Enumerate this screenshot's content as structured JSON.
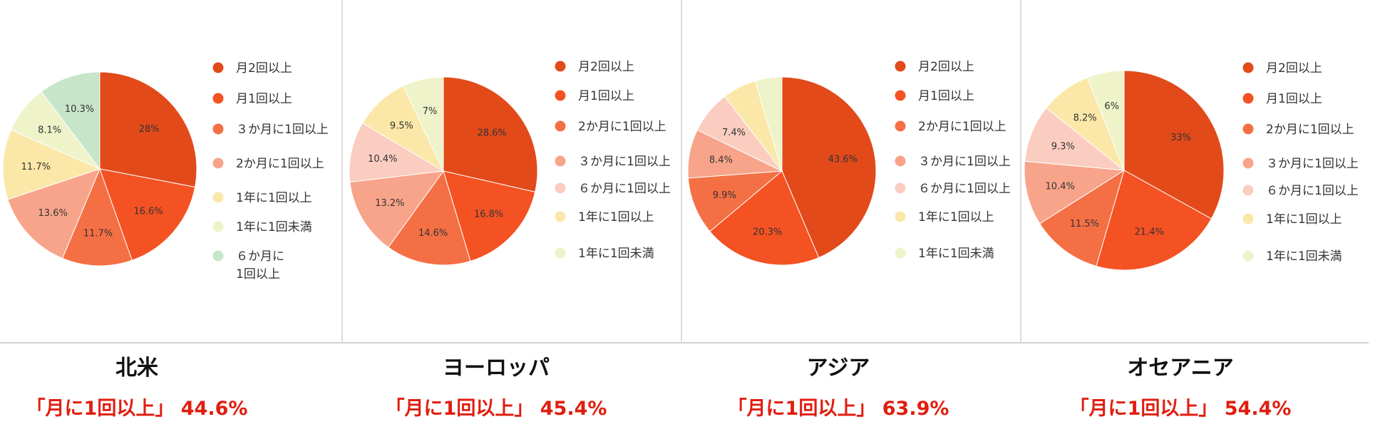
{
  "chart_data": [
    {
      "type": "pie",
      "title": "北米",
      "summary": "「月に1回以上」 44.6%",
      "slices": [
        {
          "label": "月2回以上",
          "value": 28,
          "text": "28%",
          "color": "#e24a1a"
        },
        {
          "label": "月1回以上",
          "value": 16.6,
          "text": "16.6%",
          "color": "#f45223"
        },
        {
          "label": "３か月に1回以上",
          "value": 11.7,
          "text": "11.7%",
          "color": "#f56f45"
        },
        {
          "label": "2か月に1回以上",
          "value": 13.6,
          "text": "13.6%",
          "color": "#f8a48a"
        },
        {
          "label": "1年に1回以上",
          "value": 11.7,
          "text": "11.7%",
          "color": "#fbe8a8"
        },
        {
          "label": "1年に1回未満",
          "value": 8.1,
          "text": "8.1%",
          "color": "#eef3ca"
        },
        {
          "label": "６か月に\n1回以上",
          "value": 10.3,
          "text": "10.3%",
          "color": "#c7e5c9"
        }
      ]
    },
    {
      "type": "pie",
      "title": "ヨーロッパ",
      "summary": "「月に1回以上」 45.4%",
      "slices": [
        {
          "label": "月2回以上",
          "value": 28.6,
          "text": "28.6%",
          "color": "#e24a1a"
        },
        {
          "label": "月1回以上",
          "value": 16.8,
          "text": "16.8%",
          "color": "#f45223"
        },
        {
          "label": "2か月に1回以上",
          "value": 14.6,
          "text": "14.6%",
          "color": "#f56f45"
        },
        {
          "label": "３か月に1回以上",
          "value": 13.2,
          "text": "13.2%",
          "color": "#f8a48a"
        },
        {
          "label": "６か月に1回以上",
          "value": 10.4,
          "text": "10.4%",
          "color": "#fbcdc0"
        },
        {
          "label": "1年に1回以上",
          "value": 9.5,
          "text": "9.5%",
          "color": "#fbe8a8"
        },
        {
          "label": "1年に1回未満",
          "value": 7,
          "text": "7%",
          "color": "#eef3ca"
        }
      ]
    },
    {
      "type": "pie",
      "title": "アジア",
      "summary": "「月に1回以上」 63.9%",
      "slices": [
        {
          "label": "月2回以上",
          "value": 43.6,
          "text": "43.6%",
          "color": "#e24a1a"
        },
        {
          "label": "月1回以上",
          "value": 20.3,
          "text": "20.3%",
          "color": "#f45223"
        },
        {
          "label": "2か月に1回以上",
          "value": 9.9,
          "text": "9.9%",
          "color": "#f56f45"
        },
        {
          "label": "３か月に1回以上",
          "value": 8.4,
          "text": "8.4%",
          "color": "#f8a48a"
        },
        {
          "label": "６か月に1回以上",
          "value": 7.4,
          "text": "7.4%",
          "color": "#fbcdc0"
        },
        {
          "label": "1年に1回以上",
          "value": 5.8,
          "text": "",
          "color": "#fbe8a8"
        },
        {
          "label": "1年に1回未満",
          "value": 4.6,
          "text": "",
          "color": "#eef3ca"
        }
      ]
    },
    {
      "type": "pie",
      "title": "オセアニア",
      "summary": "「月に1回以上」 54.4%",
      "slices": [
        {
          "label": "月2回以上",
          "value": 33,
          "text": "33%",
          "color": "#e24a1a"
        },
        {
          "label": "月1回以上",
          "value": 21.4,
          "text": "21.4%",
          "color": "#f45223"
        },
        {
          "label": "2か月に1回以上",
          "value": 11.5,
          "text": "11.5%",
          "color": "#f56f45"
        },
        {
          "label": "３か月に1回以上",
          "value": 10.4,
          "text": "10.4%",
          "color": "#f8a48a"
        },
        {
          "label": "６か月に1回以上",
          "value": 9.3,
          "text": "9.3%",
          "color": "#fbcdc0"
        },
        {
          "label": "1年に1回以上",
          "value": 8.2,
          "text": "8.2%",
          "color": "#fbe8a8"
        },
        {
          "label": "1年に1回未満",
          "value": 6,
          "text": "6%",
          "color": "#eef3ca"
        }
      ]
    }
  ]
}
